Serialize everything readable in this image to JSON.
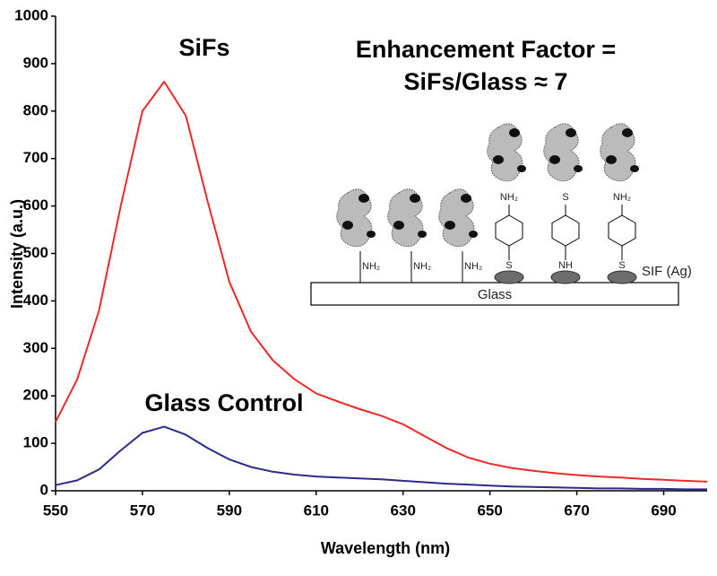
{
  "chart_data": {
    "type": "line",
    "x_label": "Wavelength (nm)",
    "y_label": "Intensity (a.u.)",
    "x": [
      550,
      555,
      560,
      565,
      570,
      575,
      580,
      585,
      590,
      595,
      600,
      605,
      610,
      615,
      620,
      625,
      630,
      635,
      640,
      645,
      650,
      655,
      660,
      665,
      670,
      675,
      680,
      685,
      690,
      695,
      700
    ],
    "series": [
      {
        "name": "SiFs",
        "color": "#f02828",
        "values": [
          145,
          235,
          380,
          600,
          800,
          862,
          790,
          610,
          440,
          335,
          275,
          235,
          205,
          188,
          172,
          158,
          140,
          115,
          90,
          70,
          57,
          48,
          42,
          37,
          33,
          30,
          28,
          25,
          23,
          21,
          19
        ]
      },
      {
        "name": "Glass Control",
        "color": "#2e2a8a",
        "values": [
          12,
          22,
          45,
          85,
          122,
          135,
          118,
          90,
          66,
          50,
          40,
          34,
          30,
          28,
          26,
          24,
          21,
          18,
          15,
          13,
          11,
          9,
          8,
          7,
          6,
          5,
          5,
          4,
          4,
          3,
          3
        ]
      }
    ],
    "xlim": [
      550,
      700
    ],
    "xticks": [
      550,
      570,
      590,
      610,
      630,
      650,
      670,
      690
    ],
    "ylim": [
      0,
      1000
    ],
    "yticks": [
      0,
      100,
      200,
      300,
      400,
      500,
      600,
      700,
      800,
      900,
      1000
    ],
    "grid": false,
    "annotations": [
      "Enhancement Factor =",
      "SiFs/Glass ≈ 7"
    ],
    "inset": {
      "substrate": "Glass",
      "silver_label": "SIF (Ag)",
      "glass_linkers": [
        "NH₂",
        "NH₂",
        "NH₂"
      ],
      "silver_top": [
        "NH₂",
        "S",
        "NH₂"
      ],
      "silver_bottom": [
        "S",
        "NH",
        "S"
      ]
    }
  }
}
